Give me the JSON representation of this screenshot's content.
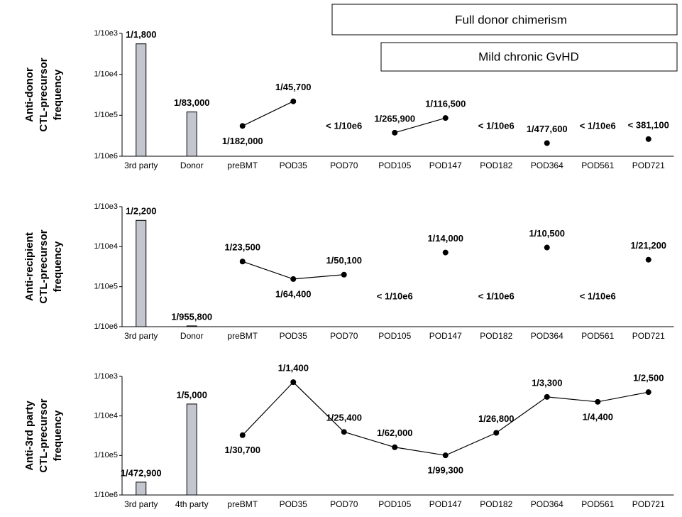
{
  "chart_data": [
    {
      "type": "combo",
      "ylabel": [
        "Anti-donor",
        "CTL-precursor",
        "frequency"
      ],
      "annotations": [
        "Full donor chimerism",
        "Mild chronic GvHD"
      ],
      "categories": [
        "3rd party",
        "Donor",
        "preBMT",
        "POD35",
        "POD70",
        "POD105",
        "POD147",
        "POD182",
        "POD364",
        "POD561",
        "POD721"
      ],
      "log_scale": true,
      "ylim": [
        1e-06,
        0.001
      ],
      "yticks": [
        {
          "value": 0.001,
          "label": "1/10e3"
        },
        {
          "value": 0.0001,
          "label": "1/10e4"
        },
        {
          "value": 1e-05,
          "label": "1/10e5"
        },
        {
          "value": 1e-06,
          "label": "1/10e6"
        }
      ],
      "series": [
        {
          "type": "bar",
          "color": "#c4c6cf",
          "values": [
            0.00055556,
            1.2048e-05,
            null,
            null,
            null,
            null,
            null,
            null,
            null,
            null,
            null
          ],
          "value_labels": [
            "1/1,800",
            "1/83,000",
            null,
            null,
            null,
            null,
            null,
            null,
            null,
            null,
            null
          ]
        },
        {
          "type": "line",
          "color": "#000000",
          "values": [
            null,
            null,
            5.4945e-06,
            2.1882e-05,
            null,
            3.7608e-06,
            8.5837e-06,
            null,
            2.0938e-06,
            null,
            2.624e-06
          ],
          "value_labels": [
            null,
            null,
            "1/182,000",
            "1/45,700",
            "< 1/10e6",
            "1/265,900",
            "1/116,500",
            "< 1/10e6",
            "1/477,600",
            "< 1/10e6",
            "< 381,100"
          ]
        }
      ]
    },
    {
      "type": "combo",
      "ylabel": [
        "Anti-recipient",
        "CTL-precursor",
        "frequency"
      ],
      "categories": [
        "3rd party",
        "Donor",
        "preBMT",
        "POD35",
        "POD70",
        "POD105",
        "POD147",
        "POD182",
        "POD364",
        "POD561",
        "POD721"
      ],
      "log_scale": true,
      "ylim": [
        1e-06,
        0.001
      ],
      "yticks": [
        {
          "value": 0.001,
          "label": "1/10e3"
        },
        {
          "value": 0.0001,
          "label": "1/10e4"
        },
        {
          "value": 1e-05,
          "label": "1/10e5"
        },
        {
          "value": 1e-06,
          "label": "1/10e6"
        }
      ],
      "series": [
        {
          "type": "bar",
          "color": "#c4c6cf",
          "values": [
            0.00045455,
            1.0462e-06,
            null,
            null,
            null,
            null,
            null,
            null,
            null,
            null,
            null
          ],
          "value_labels": [
            "1/2,200",
            "1/955,800",
            null,
            null,
            null,
            null,
            null,
            null,
            null,
            null,
            null
          ]
        },
        {
          "type": "line",
          "color": "#000000",
          "values": [
            null,
            null,
            4.2553e-05,
            1.5528e-05,
            1.996e-05,
            null,
            7.1429e-05,
            null,
            9.5238e-05,
            null,
            4.717e-05
          ],
          "value_labels": [
            null,
            null,
            "1/23,500",
            "1/64,400",
            "1/50,100",
            "< 1/10e6",
            "1/14,000",
            "< 1/10e6",
            "1/10,500",
            "< 1/10e6",
            "1/21,200"
          ]
        }
      ]
    },
    {
      "type": "combo",
      "ylabel": [
        "Anti-3rd party",
        "CTL-precursor",
        "frequency"
      ],
      "categories": [
        "3rd party",
        "4th party",
        "preBMT",
        "POD35",
        "POD70",
        "POD105",
        "POD147",
        "POD182",
        "POD364",
        "POD561",
        "POD721"
      ],
      "log_scale": true,
      "ylim": [
        1e-06,
        0.001
      ],
      "yticks": [
        {
          "value": 0.001,
          "label": "1/10e3"
        },
        {
          "value": 0.0001,
          "label": "1/10e4"
        },
        {
          "value": 1e-05,
          "label": "1/10e5"
        },
        {
          "value": 1e-06,
          "label": "1/10e6"
        }
      ],
      "series": [
        {
          "type": "bar",
          "color": "#c4c6cf",
          "values": [
            2.1146e-06,
            0.0002,
            null,
            null,
            null,
            null,
            null,
            null,
            null,
            null,
            null
          ],
          "value_labels": [
            "1/472,900",
            "1/5,000",
            null,
            null,
            null,
            null,
            null,
            null,
            null,
            null,
            null
          ]
        },
        {
          "type": "line",
          "color": "#000000",
          "values": [
            null,
            null,
            3.2573e-05,
            0.00071429,
            3.937e-05,
            1.6129e-05,
            1.007e-05,
            3.7313e-05,
            0.00030303,
            0.00022727,
            0.0004
          ],
          "value_labels": [
            null,
            null,
            "1/30,700",
            "1/1,400",
            "1/25,400",
            "1/62,000",
            "1/99,300",
            "1/26,800",
            "1/3,300",
            "1/4,400",
            "1/2,500"
          ]
        }
      ]
    }
  ]
}
